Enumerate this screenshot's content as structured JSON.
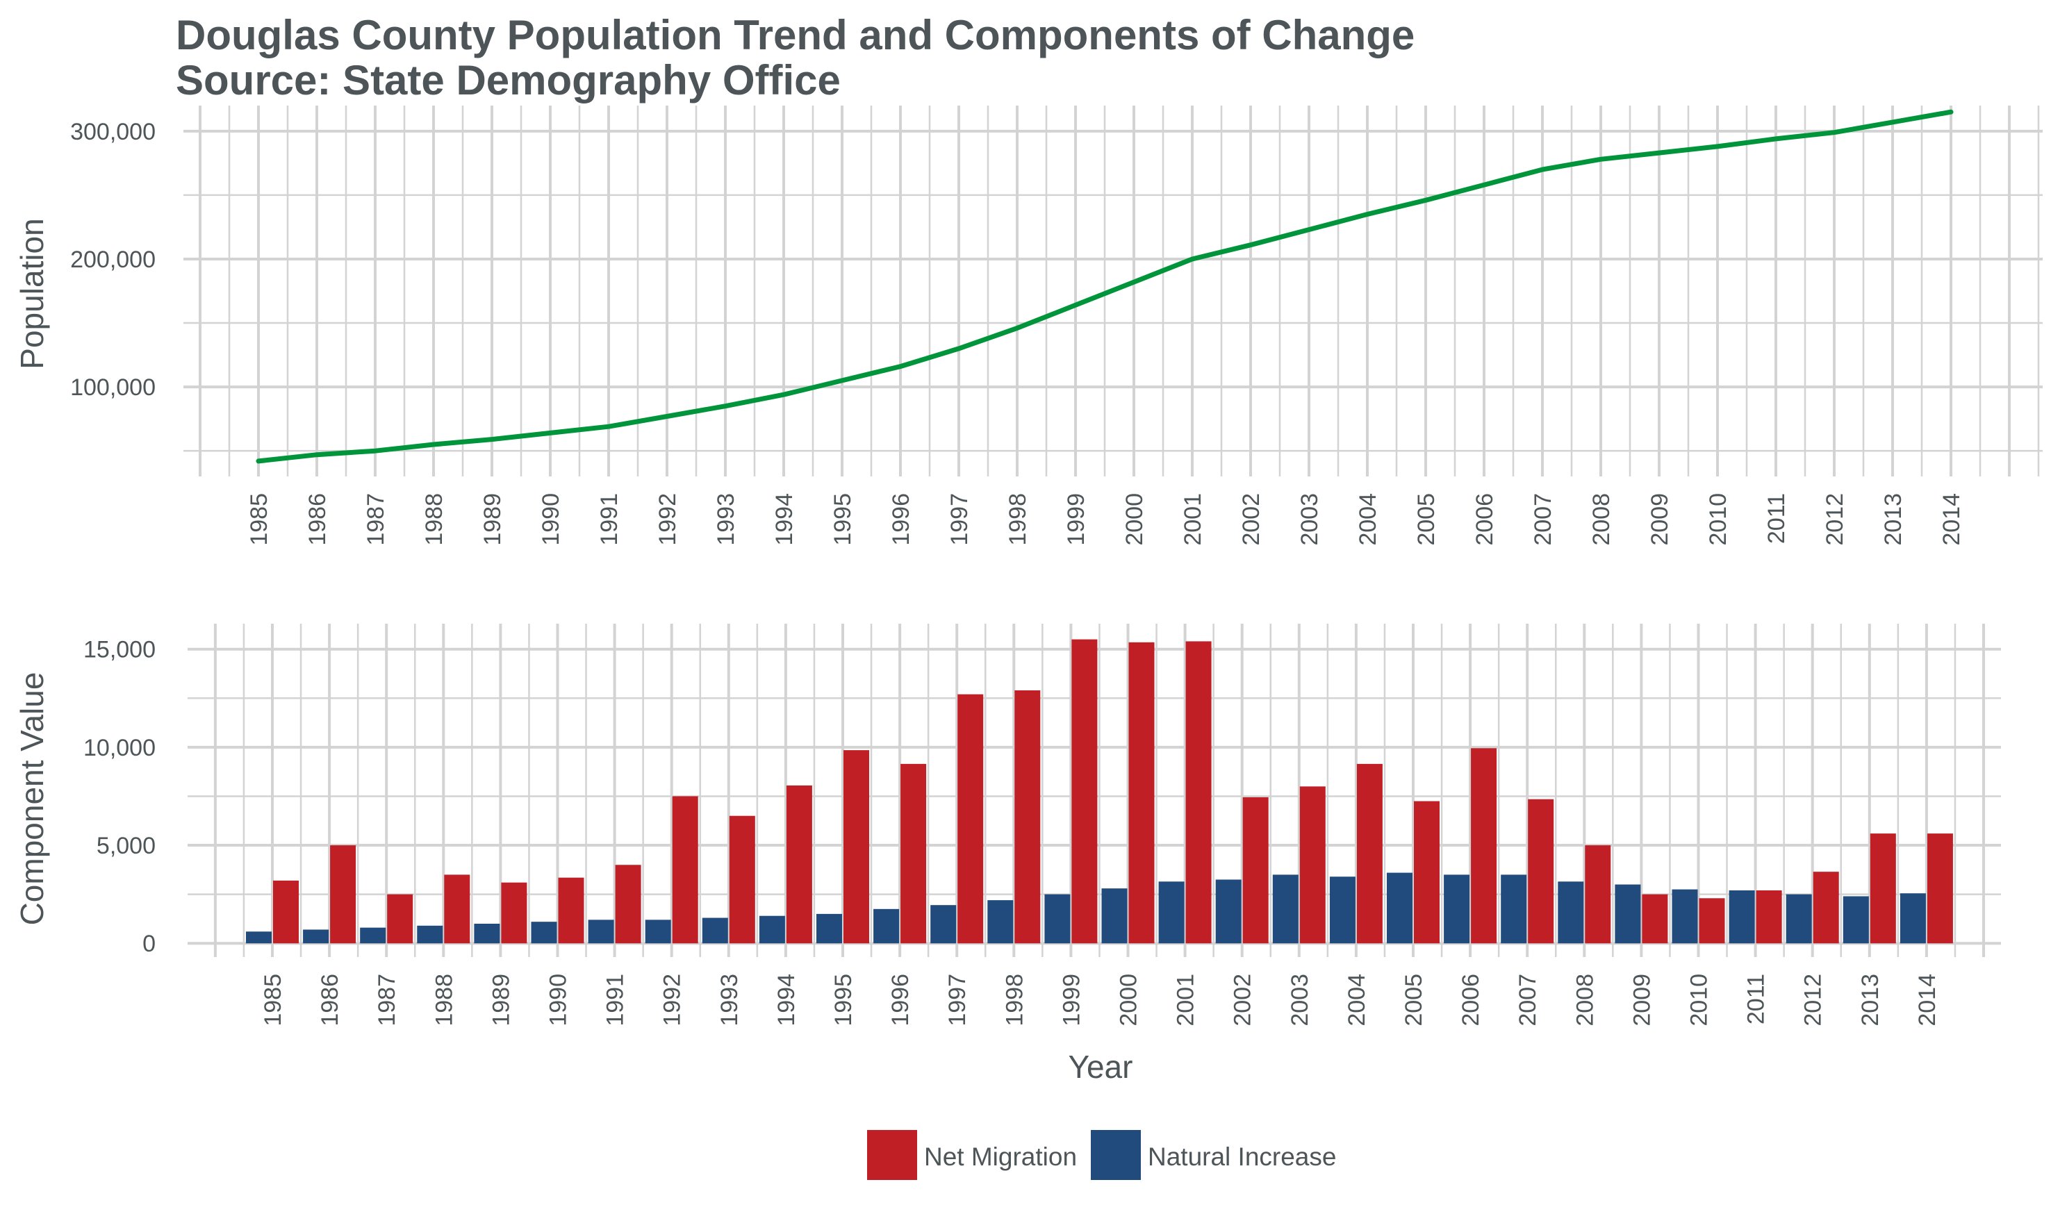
{
  "title": "Douglas County Population Trend and Components of Change",
  "subtitle": "Source: State Demography Office",
  "colors": {
    "population_line": "#00953a",
    "net_migration": "#c01f26",
    "natural_increase": "#214b7d",
    "grid": "#d3d3d3",
    "text": "#4d5559"
  },
  "chart_data": [
    {
      "type": "line",
      "xlabel": "",
      "ylabel": "Population",
      "x": [
        "1985",
        "1986",
        "1987",
        "1988",
        "1989",
        "1990",
        "1991",
        "1992",
        "1993",
        "1994",
        "1995",
        "1996",
        "1997",
        "1998",
        "1999",
        "2000",
        "2001",
        "2002",
        "2003",
        "2004",
        "2005",
        "2006",
        "2007",
        "2008",
        "2009",
        "2010",
        "2011",
        "2012",
        "2013",
        "2014"
      ],
      "series": [
        {
          "values": [
            42000,
            47000,
            50000,
            55000,
            59000,
            64000,
            69000,
            77000,
            85000,
            94000,
            105000,
            116000,
            130000,
            146000,
            164000,
            182000,
            200000,
            211000,
            223000,
            235000,
            246000,
            258000,
            270000,
            278000,
            283000,
            288000,
            294000,
            299000,
            307000,
            315000
          ]
        }
      ],
      "ylim": [
        30000,
        320000
      ],
      "yticks": [
        "100,000",
        "200,000",
        "300,000"
      ],
      "grid": true
    },
    {
      "type": "bar",
      "xlabel": "Year",
      "ylabel": "Component Value",
      "categories": [
        "1985",
        "1986",
        "1987",
        "1988",
        "1989",
        "1990",
        "1991",
        "1992",
        "1993",
        "1994",
        "1995",
        "1996",
        "1997",
        "1998",
        "1999",
        "2000",
        "2001",
        "2002",
        "2003",
        "2004",
        "2005",
        "2006",
        "2007",
        "2008",
        "2009",
        "2010",
        "2011",
        "2012",
        "2013",
        "2014"
      ],
      "series": [
        {
          "name": "Natural Increase",
          "values": [
            600,
            700,
            800,
            900,
            1000,
            1100,
            1200,
            1200,
            1300,
            1400,
            1500,
            1750,
            1950,
            2200,
            2500,
            2800,
            3150,
            3250,
            3500,
            3400,
            3600,
            3500,
            3500,
            3150,
            3000,
            2750,
            2700,
            2500,
            2400,
            2550
          ]
        },
        {
          "name": "Net Migration",
          "values": [
            3200,
            5000,
            2500,
            3500,
            3100,
            3350,
            4000,
            7500,
            6500,
            8050,
            9850,
            9150,
            12700,
            12900,
            15500,
            15350,
            15400,
            7450,
            8000,
            9150,
            7250,
            9950,
            7350,
            5000,
            2500,
            2300,
            2700,
            3650,
            5600,
            5600
          ]
        }
      ],
      "ylim": [
        -700,
        16300
      ],
      "yticks": [
        "0",
        "5,000",
        "10,000",
        "15,000"
      ],
      "grid": true,
      "legend_position": "bottom"
    }
  ]
}
